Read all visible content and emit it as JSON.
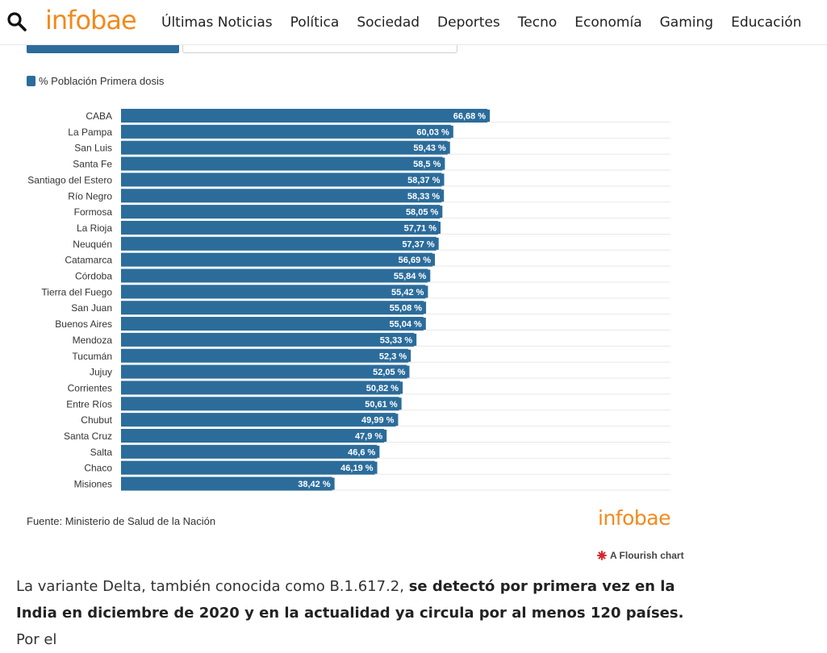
{
  "header": {
    "logo": "infobae",
    "nav": [
      "Últimas Noticias",
      "Política",
      "Sociedad",
      "Deportes",
      "Tecno",
      "Economía",
      "Gaming",
      "Educación"
    ]
  },
  "colors": {
    "brand": "#f28a1c",
    "bar": "#2b6c9b",
    "label_bg": "#2b6c9b"
  },
  "legend": {
    "label": "% Población Primera dosis"
  },
  "chart_data": {
    "type": "bar",
    "orientation": "horizontal",
    "categories": [
      "CABA",
      "La Pampa",
      "San Luis",
      "Santa Fe",
      "Santiago del Estero",
      "Río Negro",
      "Formosa",
      "La Rioja",
      "Neuquén",
      "Catamarca",
      "Córdoba",
      "Tierra del Fuego",
      "San Juan",
      "Buenos Aires",
      "Mendoza",
      "Tucumán",
      "Jujuy",
      "Corrientes",
      "Entre Ríos",
      "Chubut",
      "Santa Cruz",
      "Salta",
      "Chaco",
      "Misiones"
    ],
    "series": [
      {
        "name": "% Población Primera dosis",
        "values": [
          66.68,
          60.03,
          59.43,
          58.5,
          58.37,
          58.33,
          58.05,
          57.71,
          57.37,
          56.69,
          55.84,
          55.42,
          55.08,
          55.04,
          53.33,
          52.3,
          52.05,
          50.82,
          50.61,
          49.99,
          47.9,
          46.6,
          46.19,
          38.42
        ]
      }
    ],
    "value_labels": [
      "66,68 %",
      "60,03 %",
      "59,43 %",
      "58,5 %",
      "58,37 %",
      "58,33 %",
      "58,05 %",
      "57,71 %",
      "57,37 %",
      "56,69 %",
      "55,84 %",
      "55,42 %",
      "55,08 %",
      "55,04 %",
      "53,33 %",
      "52,3 %",
      "52,05 %",
      "50,82 %",
      "50,61 %",
      "49,99 %",
      "47,9 %",
      "46,6 %",
      "46,19 %",
      "38,42 %"
    ],
    "xlim": [
      0,
      100
    ],
    "legend_position": "top-left",
    "grid": false
  },
  "source": "Fuente: Ministerio de Salud de la Nación",
  "footer": {
    "logo": "infobae",
    "flourish": "A Flourish chart"
  },
  "article": {
    "text1": "La variante Delta, también conocida como B.1.617.2, ",
    "bold1": "se detectó por primera vez en la India en diciembre de 2020 y en la actualidad ya circula por al menos 120 países.",
    "text2": " Por el"
  }
}
